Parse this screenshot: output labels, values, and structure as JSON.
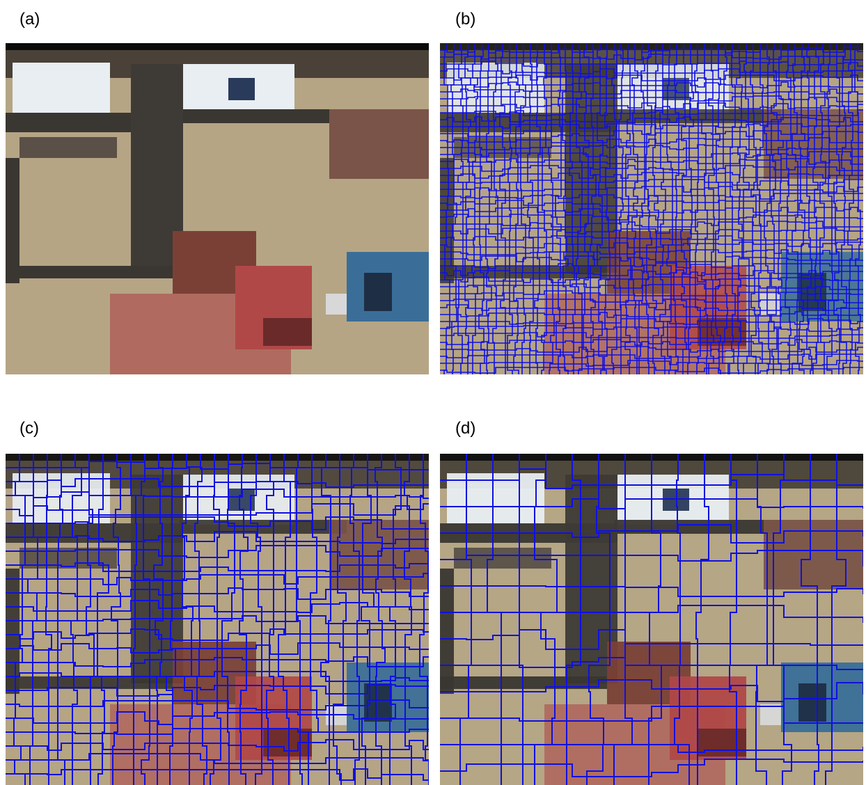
{
  "panels": [
    {
      "label": "(a)",
      "kind": "original",
      "grid": 0
    },
    {
      "label": "(b)",
      "kind": "fine-superpixels",
      "grid": 10
    },
    {
      "label": "(c)",
      "kind": "medium-superpixels",
      "grid": 20
    },
    {
      "label": "(d)",
      "kind": "coarse-superpixels",
      "grid": 38
    }
  ],
  "colors": {
    "boundary": "#1010e0",
    "background_wall": "#b5a585",
    "window_light": "#e8eef2",
    "dark_frame": "#3a3632",
    "red_object": "#b04848",
    "blue_object": "#3a6e98"
  }
}
